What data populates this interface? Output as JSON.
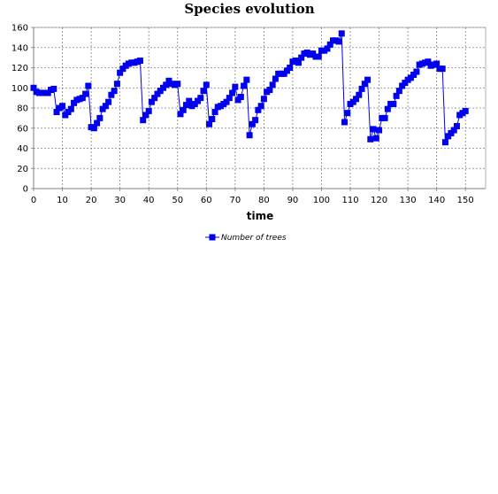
{
  "chart_data": {
    "type": "line",
    "title": "Species evolution",
    "xlabel": "time",
    "ylabel": "",
    "xlim": [
      0,
      157
    ],
    "ylim": [
      0,
      160
    ],
    "x_ticks": [
      0,
      10,
      20,
      30,
      40,
      50,
      60,
      70,
      80,
      90,
      100,
      110,
      120,
      130,
      140,
      150
    ],
    "y_ticks": [
      0,
      20,
      40,
      60,
      80,
      100,
      120,
      140,
      160
    ],
    "grid": true,
    "legend_position": "bottom",
    "colors": {
      "series": "#0000ee",
      "grid": "#808080",
      "plot_background": "#ffffff"
    },
    "series": [
      {
        "name": "Number of trees",
        "marker": "square",
        "x": [
          0,
          1,
          2,
          3,
          4,
          5,
          6,
          7,
          8,
          9,
          10,
          11,
          12,
          13,
          14,
          15,
          16,
          17,
          18,
          19,
          20,
          21,
          22,
          23,
          24,
          25,
          26,
          27,
          28,
          29,
          30,
          31,
          32,
          33,
          34,
          35,
          36,
          37,
          38,
          39,
          40,
          41,
          42,
          43,
          44,
          45,
          46,
          47,
          48,
          49,
          50,
          51,
          52,
          53,
          54,
          55,
          56,
          57,
          58,
          59,
          60,
          61,
          62,
          63,
          64,
          65,
          66,
          67,
          68,
          69,
          70,
          71,
          72,
          73,
          74,
          75,
          76,
          77,
          78,
          79,
          80,
          81,
          82,
          83,
          84,
          85,
          86,
          87,
          88,
          89,
          90,
          91,
          92,
          93,
          94,
          95,
          96,
          97,
          98,
          99,
          100,
          101,
          102,
          103,
          104,
          105,
          106,
          107,
          108,
          109,
          110,
          111,
          112,
          113,
          114,
          115,
          116,
          117,
          118,
          119,
          120,
          121,
          122,
          123,
          124,
          125,
          126,
          127,
          128,
          129,
          130,
          131,
          132,
          133,
          134,
          135,
          136,
          137,
          138,
          139,
          140,
          141,
          142,
          143,
          144,
          145,
          146,
          147,
          148,
          149,
          150
        ],
        "y": [
          100,
          96,
          95,
          95,
          95,
          95,
          98,
          99,
          76,
          80,
          82,
          73,
          76,
          79,
          85,
          88,
          89,
          90,
          94,
          102,
          61,
          60,
          65,
          70,
          79,
          82,
          86,
          93,
          97,
          104,
          115,
          119,
          122,
          124,
          125,
          125,
          126,
          127,
          68,
          73,
          77,
          86,
          90,
          94,
          97,
          100,
          103,
          107,
          104,
          103,
          104,
          74,
          78,
          83,
          87,
          82,
          84,
          87,
          90,
          97,
          103,
          64,
          69,
          76,
          81,
          82,
          84,
          86,
          90,
          95,
          101,
          88,
          91,
          102,
          108,
          53,
          64,
          68,
          78,
          82,
          89,
          96,
          98,
          103,
          109,
          114,
          114,
          114,
          117,
          120,
          126,
          127,
          125,
          130,
          134,
          135,
          133,
          134,
          131,
          131,
          137,
          137,
          139,
          143,
          147,
          147,
          146,
          154,
          66,
          75,
          84,
          86,
          89,
          93,
          99,
          104,
          108,
          49,
          59,
          50,
          58,
          70,
          70,
          79,
          84,
          84,
          92,
          97,
          102,
          105,
          108,
          110,
          113,
          116,
          123,
          124,
          125,
          126,
          122,
          123,
          124,
          119,
          119,
          46,
          52,
          55,
          58,
          62,
          73,
          75,
          77
        ]
      }
    ]
  }
}
